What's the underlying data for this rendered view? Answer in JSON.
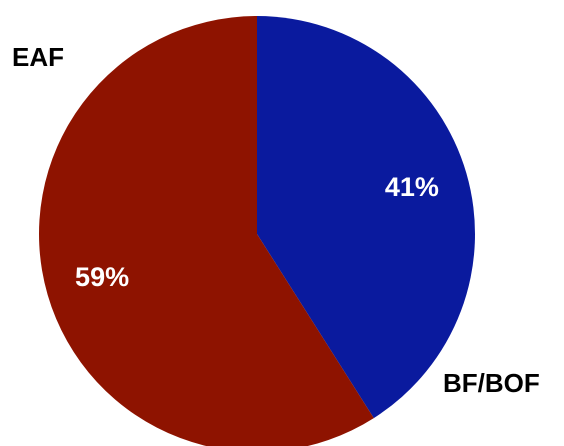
{
  "chart_data": {
    "type": "pie",
    "title": "",
    "slices": [
      {
        "name": "BF/BOF",
        "value": 41,
        "label": "41%",
        "color": "#0a1a9e"
      },
      {
        "name": "EAF",
        "value": 59,
        "label": "59%",
        "color": "#8e1300"
      }
    ],
    "start_angle": "12 o'clock",
    "direction": "clockwise",
    "legend": "category names placed beside the pie (EAF top-left, BF/BOF bottom-right)"
  }
}
